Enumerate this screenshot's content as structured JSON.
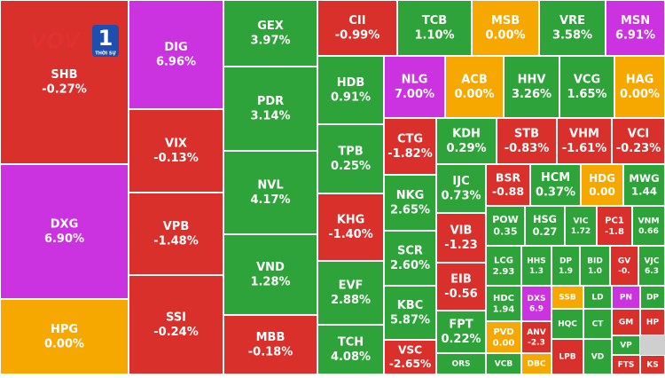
{
  "logo": {
    "name": "VOV",
    "channel": "1",
    "subtitle": "THỜI SỰ"
  },
  "tiles": [
    {
      "ticker": "SHB",
      "change": "-0.27%",
      "color": "#d9302c"
    },
    {
      "ticker": "DXG",
      "change": "6.90%",
      "color": "#cc33e0"
    },
    {
      "ticker": "HPG",
      "change": "0.00%",
      "color": "#f7a800"
    },
    {
      "ticker": "DIG",
      "change": "6.96%",
      "color": "#cc33e0"
    },
    {
      "ticker": "VIX",
      "change": "-0.13%",
      "color": "#d9302c"
    },
    {
      "ticker": "VPB",
      "change": "-1.48%",
      "color": "#d9302c"
    },
    {
      "ticker": "SSI",
      "change": "-0.24%",
      "color": "#d9302c"
    },
    {
      "ticker": "GEX",
      "change": "3.97%",
      "color": "#2ea33a"
    },
    {
      "ticker": "PDR",
      "change": "3.14%",
      "color": "#2ea33a"
    },
    {
      "ticker": "NVL",
      "change": "4.17%",
      "color": "#2ea33a"
    },
    {
      "ticker": "VND",
      "change": "1.28%",
      "color": "#2ea33a"
    },
    {
      "ticker": "MBB",
      "change": "-0.18%",
      "color": "#d9302c"
    },
    {
      "ticker": "CII",
      "change": "-0.99%",
      "color": "#d9302c"
    },
    {
      "ticker": "TCB",
      "change": "1.10%",
      "color": "#2ea33a"
    },
    {
      "ticker": "MSB",
      "change": "0.00%",
      "color": "#f7a800"
    },
    {
      "ticker": "VRE",
      "change": "3.58%",
      "color": "#2ea33a"
    },
    {
      "ticker": "MSN",
      "change": "6.91%",
      "color": "#cc33e0"
    },
    {
      "ticker": "HDB",
      "change": "0.91%",
      "color": "#2ea33a"
    },
    {
      "ticker": "TPB",
      "change": "0.25%",
      "color": "#2ea33a"
    },
    {
      "ticker": "KHG",
      "change": "-1.40%",
      "color": "#d9302c"
    },
    {
      "ticker": "EVF",
      "change": "2.88%",
      "color": "#2ea33a"
    },
    {
      "ticker": "TCH",
      "change": "4.08%",
      "color": "#2ea33a"
    },
    {
      "ticker": "NLG",
      "change": "7.00%",
      "color": "#cc33e0"
    },
    {
      "ticker": "ACB",
      "change": "0.00%",
      "color": "#f7a800"
    },
    {
      "ticker": "HHV",
      "change": "3.26%",
      "color": "#2ea33a"
    },
    {
      "ticker": "VCG",
      "change": "1.65%",
      "color": "#2ea33a"
    },
    {
      "ticker": "HAG",
      "change": "0.00%",
      "color": "#f7a800"
    },
    {
      "ticker": "CTG",
      "change": "-1.82%",
      "color": "#d9302c"
    },
    {
      "ticker": "NKG",
      "change": "2.65%",
      "color": "#2ea33a"
    },
    {
      "ticker": "SCR",
      "change": "2.60%",
      "color": "#2ea33a"
    },
    {
      "ticker": "KBC",
      "change": "5.87%",
      "color": "#2ea33a"
    },
    {
      "ticker": "VSC",
      "change": "-2.65%",
      "color": "#d9302c"
    },
    {
      "ticker": "KDH",
      "change": "0.29%",
      "color": "#2ea33a"
    },
    {
      "ticker": "STB",
      "change": "-0.83%",
      "color": "#d9302c"
    },
    {
      "ticker": "VHM",
      "change": "-1.61%",
      "color": "#d9302c"
    },
    {
      "ticker": "VCI",
      "change": "-0.23%",
      "color": "#d9302c"
    },
    {
      "ticker": "IJC",
      "change": "0.73%",
      "color": "#2ea33a"
    },
    {
      "ticker": "VIB",
      "change": "-1.23",
      "color": "#d9302c"
    },
    {
      "ticker": "EIB",
      "change": "-0.56",
      "color": "#d9302c"
    },
    {
      "ticker": "FPT",
      "change": "0.22%",
      "color": "#2ea33a"
    },
    {
      "ticker": "ORS",
      "color": "#2ea33a"
    },
    {
      "ticker": "BSR",
      "change": "-0.88",
      "color": "#d9302c"
    },
    {
      "ticker": "HCM",
      "change": "0.37%",
      "color": "#2ea33a"
    },
    {
      "ticker": "HDG",
      "change": "0.00",
      "color": "#f7a800"
    },
    {
      "ticker": "MWG",
      "change": "1.44",
      "color": "#2ea33a"
    },
    {
      "ticker": "POW",
      "change": "0.35",
      "color": "#2ea33a"
    },
    {
      "ticker": "HSG",
      "change": "0.27",
      "color": "#2ea33a"
    },
    {
      "ticker": "VIC",
      "change": "1.72",
      "color": "#2ea33a"
    },
    {
      "ticker": "PC1",
      "change": "-1.8",
      "color": "#d9302c"
    },
    {
      "ticker": "VNM",
      "change": "0.66",
      "color": "#2ea33a"
    },
    {
      "ticker": "LCG",
      "change": "2.93",
      "color": "#2ea33a"
    },
    {
      "ticker": "HHS",
      "change": "1.3",
      "color": "#2ea33a"
    },
    {
      "ticker": "DP",
      "change": "1.9",
      "color": "#2ea33a"
    },
    {
      "ticker": "BID",
      "change": "1.0",
      "color": "#2ea33a"
    },
    {
      "ticker": "GV",
      "change": "-0.",
      "color": "#d9302c"
    },
    {
      "ticker": "VJC",
      "change": "6.3",
      "color": "#2ea33a"
    },
    {
      "ticker": "HDC",
      "change": "1.94",
      "color": "#2ea33a"
    },
    {
      "ticker": "DXS",
      "change": "6.9",
      "color": "#cc33e0"
    },
    {
      "ticker": "SSB",
      "color": "#f7a800"
    },
    {
      "ticker": "LD",
      "color": "#2ea33a"
    },
    {
      "ticker": "PN",
      "color": "#cc33e0"
    },
    {
      "ticker": "DP",
      "color": "#2ea33a"
    },
    {
      "ticker": "PVD",
      "change": "0.00",
      "color": "#f7a800"
    },
    {
      "ticker": "ANV",
      "change": "-2.3",
      "color": "#d9302c"
    },
    {
      "ticker": "HQC",
      "color": "#2ea33a"
    },
    {
      "ticker": "CT",
      "color": "#2ea33a"
    },
    {
      "ticker": "GM",
      "color": "#d9302c"
    },
    {
      "ticker": "HP",
      "color": "#d9302c"
    },
    {
      "ticker": "VCB",
      "color": "#2ea33a"
    },
    {
      "ticker": "DBC",
      "color": "#f7a800"
    },
    {
      "ticker": "LPB",
      "color": "#d9302c"
    },
    {
      "ticker": "VD",
      "color": "#2ea33a"
    },
    {
      "ticker": "VP",
      "color": "#2ea33a"
    },
    {
      "ticker": "FTS",
      "color": "#d9302c"
    },
    {
      "ticker": "KS",
      "color": "#d9302c"
    }
  ]
}
